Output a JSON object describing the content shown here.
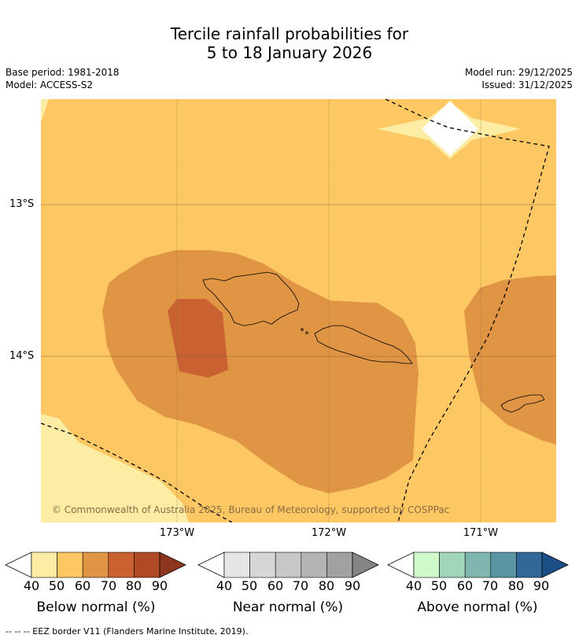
{
  "title": {
    "line1": "Tercile rainfall probabilities for",
    "line2": "5 to 18 January 2026"
  },
  "meta": {
    "base_period": "Base period: 1981-2018",
    "model": "Model: ACCESS-S2",
    "model_run": "Model run: 29/12/2025",
    "issued": "Issued: 31/12/2025"
  },
  "map": {
    "lat_labels": [
      "13°S",
      "14°S"
    ],
    "lon_labels": [
      "173°W",
      "172°W",
      "171°W"
    ],
    "copyright": "© Commonwealth of Australia 2025, Bureau of Meteorology, supported by COSPPac",
    "colors": {
      "below_40": "#fdeda4",
      "below_50": "#fdc864",
      "below_60": "#e09545",
      "below_70": "#c96230",
      "below_80": "#b04a25",
      "below_90": "#8e351d"
    }
  },
  "colorbars": [
    {
      "label": "Below normal (%)",
      "ticks": [
        "40",
        "50",
        "60",
        "70",
        "80",
        "90"
      ],
      "colors": [
        "#fdeda4",
        "#fdc864",
        "#e09545",
        "#c96230",
        "#b04a25"
      ],
      "extend": "#8e351d"
    },
    {
      "label": "Near normal (%)",
      "ticks": [
        "40",
        "50",
        "60",
        "70",
        "80",
        "90"
      ],
      "colors": [
        "#e6e6e6",
        "#d6d6d6",
        "#c7c7c7",
        "#b4b4b4",
        "#a1a1a1"
      ],
      "extend": "#848484"
    },
    {
      "label": "Above normal (%)",
      "ticks": [
        "40",
        "50",
        "60",
        "70",
        "80",
        "90"
      ],
      "colors": [
        "#cff8cb",
        "#a2d6bb",
        "#80b6b0",
        "#5b94a3",
        "#336699"
      ],
      "extend": "#1c4f86"
    }
  ],
  "footnote": "--  --  -- EEZ border V11 (Flanders Marine Institute, 2019)."
}
